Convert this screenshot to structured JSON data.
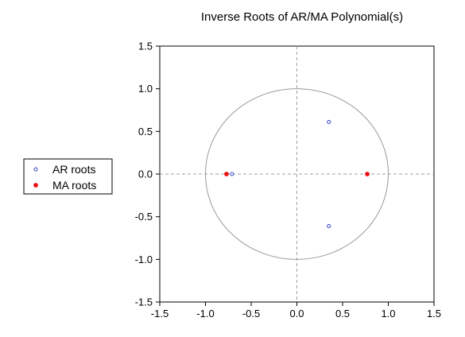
{
  "chart_data": {
    "type": "scatter",
    "title": "Inverse Roots of AR/MA Polynomial(s)",
    "xlabel": "",
    "ylabel": "",
    "xlim": [
      -1.5,
      1.5
    ],
    "ylim": [
      -1.5,
      1.5
    ],
    "x_ticks": [
      -1.5,
      -1.0,
      -0.5,
      0.0,
      0.5,
      1.0,
      1.5
    ],
    "y_ticks": [
      -1.5,
      -1.0,
      -0.5,
      0.0,
      0.5,
      1.0,
      1.5
    ],
    "x_tick_labels": [
      "-1.5",
      "-1.0",
      "-0.5",
      "0.0",
      "0.5",
      "1.0",
      "1.5"
    ],
    "y_tick_labels": [
      "-1.5",
      "-1.0",
      "-0.5",
      "0.0",
      "0.5",
      "1.0",
      "1.5"
    ],
    "unit_circle": true,
    "zero_lines": true,
    "grid": false,
    "legend_position": "left",
    "series": [
      {
        "name": "AR roots",
        "marker": "open-circle",
        "color": "#3344cc",
        "points": [
          {
            "x": 0.35,
            "y": 0.61
          },
          {
            "x": 0.35,
            "y": -0.61
          },
          {
            "x": -0.71,
            "y": 0.0
          }
        ]
      },
      {
        "name": "MA roots",
        "marker": "filled-circle",
        "color": "#ee1111",
        "points": [
          {
            "x": -0.77,
            "y": 0.0
          },
          {
            "x": 0.77,
            "y": 0.0
          }
        ]
      }
    ]
  }
}
